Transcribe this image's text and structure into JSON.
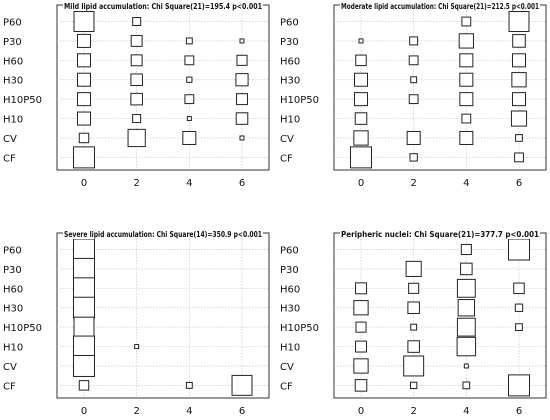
{
  "colors": {
    "frame": "#333333",
    "grid": "#c8c8c8",
    "marker_stroke": "#222222",
    "marker_fill": "#ffffff"
  },
  "chart_data": [
    {
      "type": "scatter",
      "marker": "square, area proportional to frequency",
      "title": "Mild lipid accumulation: Chi Square(21)=195.4 p<0.001",
      "categories": [
        "P60",
        "P30",
        "H60",
        "H30",
        "H10P50",
        "H10",
        "CV",
        "CF"
      ],
      "x_ticks": [
        "0",
        "2",
        "4",
        "6"
      ],
      "points": [
        {
          "group": "P60",
          "score": 0,
          "size": 0.95
        },
        {
          "group": "P60",
          "score": 2,
          "size": 0.38
        },
        {
          "group": "P30",
          "score": 0,
          "size": 0.62
        },
        {
          "group": "P30",
          "score": 2,
          "size": 0.52
        },
        {
          "group": "P30",
          "score": 4,
          "size": 0.28
        },
        {
          "group": "P30",
          "score": 6,
          "size": 0.15
        },
        {
          "group": "H60",
          "score": 0,
          "size": 0.62
        },
        {
          "group": "H60",
          "score": 2,
          "size": 0.52
        },
        {
          "group": "H60",
          "score": 4,
          "size": 0.42
        },
        {
          "group": "H60",
          "score": 6,
          "size": 0.48
        },
        {
          "group": "H30",
          "score": 0,
          "size": 0.62
        },
        {
          "group": "H30",
          "score": 2,
          "size": 0.55
        },
        {
          "group": "H30",
          "score": 4,
          "size": 0.25
        },
        {
          "group": "H30",
          "score": 6,
          "size": 0.58
        },
        {
          "group": "H10P50",
          "score": 0,
          "size": 0.62
        },
        {
          "group": "H10P50",
          "score": 2,
          "size": 0.55
        },
        {
          "group": "H10P50",
          "score": 4,
          "size": 0.42
        },
        {
          "group": "H10P50",
          "score": 6,
          "size": 0.52
        },
        {
          "group": "H10",
          "score": 0,
          "size": 0.62
        },
        {
          "group": "H10",
          "score": 2,
          "size": 0.38
        },
        {
          "group": "H10",
          "score": 4,
          "size": 0.15
        },
        {
          "group": "H10",
          "score": 6,
          "size": 0.55
        },
        {
          "group": "CV",
          "score": 0,
          "size": 0.45
        },
        {
          "group": "CV",
          "score": 2,
          "size": 0.82
        },
        {
          "group": "CV",
          "score": 4,
          "size": 0.62
        },
        {
          "group": "CV",
          "score": 6,
          "size": 0.15
        },
        {
          "group": "CF",
          "score": 0,
          "size": 1.0
        }
      ]
    },
    {
      "type": "scatter",
      "marker": "square, area proportional to frequency",
      "title": "Moderate lipid accumulation: Chi Square(21)=212.5 p<0.001",
      "categories": [
        "P60",
        "P30",
        "H60",
        "H30",
        "H10P50",
        "H10",
        "CV",
        "CF"
      ],
      "x_ticks": [
        "0",
        "2",
        "4",
        "6"
      ],
      "points": [
        {
          "group": "P60",
          "score": 4,
          "size": 0.42
        },
        {
          "group": "P60",
          "score": 6,
          "size": 0.95
        },
        {
          "group": "P30",
          "score": 0,
          "size": 0.15
        },
        {
          "group": "P30",
          "score": 2,
          "size": 0.38
        },
        {
          "group": "P30",
          "score": 4,
          "size": 0.68
        },
        {
          "group": "P30",
          "score": 6,
          "size": 0.6
        },
        {
          "group": "H60",
          "score": 0,
          "size": 0.5
        },
        {
          "group": "H60",
          "score": 2,
          "size": 0.42
        },
        {
          "group": "H60",
          "score": 4,
          "size": 0.62
        },
        {
          "group": "H60",
          "score": 6,
          "size": 0.62
        },
        {
          "group": "H30",
          "score": 0,
          "size": 0.62
        },
        {
          "group": "H30",
          "score": 2,
          "size": 0.28
        },
        {
          "group": "H30",
          "score": 4,
          "size": 0.62
        },
        {
          "group": "H30",
          "score": 6,
          "size": 0.68
        },
        {
          "group": "H10P50",
          "score": 0,
          "size": 0.62
        },
        {
          "group": "H10P50",
          "score": 2,
          "size": 0.42
        },
        {
          "group": "H10P50",
          "score": 4,
          "size": 0.62
        },
        {
          "group": "H10P50",
          "score": 6,
          "size": 0.62
        },
        {
          "group": "H10",
          "score": 0,
          "size": 0.55
        },
        {
          "group": "H10",
          "score": 4,
          "size": 0.42
        },
        {
          "group": "H10",
          "score": 6,
          "size": 0.72
        },
        {
          "group": "CV",
          "score": 0,
          "size": 0.68
        },
        {
          "group": "CV",
          "score": 2,
          "size": 0.62
        },
        {
          "group": "CV",
          "score": 4,
          "size": 0.62
        },
        {
          "group": "CV",
          "score": 6,
          "size": 0.32
        },
        {
          "group": "CF",
          "score": 0,
          "size": 1.0
        },
        {
          "group": "CF",
          "score": 2,
          "size": 0.35
        },
        {
          "group": "CF",
          "score": 6,
          "size": 0.42
        }
      ]
    },
    {
      "type": "scatter",
      "marker": "square, area proportional to frequency",
      "title": "Severe lipid accumulation: Chi Square(14)=350.9 p<0.001",
      "categories": [
        "P60",
        "P30",
        "H60",
        "H30",
        "H10P50",
        "H10",
        "CV",
        "CF"
      ],
      "x_ticks": [
        "0",
        "2",
        "4",
        "6"
      ],
      "points": [
        {
          "group": "P60",
          "score": 0,
          "size": 1.0
        },
        {
          "group": "P30",
          "score": 0,
          "size": 1.0
        },
        {
          "group": "H60",
          "score": 0,
          "size": 1.0
        },
        {
          "group": "H30",
          "score": 0,
          "size": 1.0
        },
        {
          "group": "H10P50",
          "score": 0,
          "size": 0.95
        },
        {
          "group": "H10",
          "score": 0,
          "size": 1.0
        },
        {
          "group": "H10",
          "score": 2,
          "size": 0.15
        },
        {
          "group": "CV",
          "score": 0,
          "size": 1.0
        },
        {
          "group": "CF",
          "score": 0,
          "size": 0.45
        },
        {
          "group": "CF",
          "score": 4,
          "size": 0.28
        },
        {
          "group": "CF",
          "score": 6,
          "size": 0.95
        }
      ]
    },
    {
      "type": "scatter",
      "marker": "square, area proportional to frequency",
      "title": "Peripheric nuclei: Chi Square(21)=377.7 p<0.001",
      "categories": [
        "P60",
        "P30",
        "H60",
        "H30",
        "H10P50",
        "H10",
        "CV",
        "CF"
      ],
      "x_ticks": [
        "0",
        "2",
        "4",
        "6"
      ],
      "points": [
        {
          "group": "P60",
          "score": 4,
          "size": 0.48
        },
        {
          "group": "P60",
          "score": 6,
          "size": 1.0
        },
        {
          "group": "P30",
          "score": 2,
          "size": 0.72
        },
        {
          "group": "P30",
          "score": 4,
          "size": 0.55
        },
        {
          "group": "H60",
          "score": 0,
          "size": 0.52
        },
        {
          "group": "H60",
          "score": 2,
          "size": 0.48
        },
        {
          "group": "H60",
          "score": 4,
          "size": 0.85
        },
        {
          "group": "H60",
          "score": 6,
          "size": 0.5
        },
        {
          "group": "H30",
          "score": 0,
          "size": 0.68
        },
        {
          "group": "H30",
          "score": 2,
          "size": 0.55
        },
        {
          "group": "H30",
          "score": 4,
          "size": 0.78
        },
        {
          "group": "H30",
          "score": 6,
          "size": 0.35
        },
        {
          "group": "H10P50",
          "score": 0,
          "size": 0.48
        },
        {
          "group": "H10P50",
          "score": 2,
          "size": 0.28
        },
        {
          "group": "H10P50",
          "score": 4,
          "size": 0.85
        },
        {
          "group": "H10P50",
          "score": 6,
          "size": 0.32
        },
        {
          "group": "H10",
          "score": 0,
          "size": 0.52
        },
        {
          "group": "H10",
          "score": 2,
          "size": 0.55
        },
        {
          "group": "H10",
          "score": 4,
          "size": 0.88
        },
        {
          "group": "CV",
          "score": 0,
          "size": 0.68
        },
        {
          "group": "CV",
          "score": 2,
          "size": 0.95
        },
        {
          "group": "CV",
          "score": 4,
          "size": 0.15
        },
        {
          "group": "CF",
          "score": 0,
          "size": 0.55
        },
        {
          "group": "CF",
          "score": 2,
          "size": 0.3
        },
        {
          "group": "CF",
          "score": 4,
          "size": 0.32
        },
        {
          "group": "CF",
          "score": 6,
          "size": 1.0
        }
      ]
    }
  ]
}
